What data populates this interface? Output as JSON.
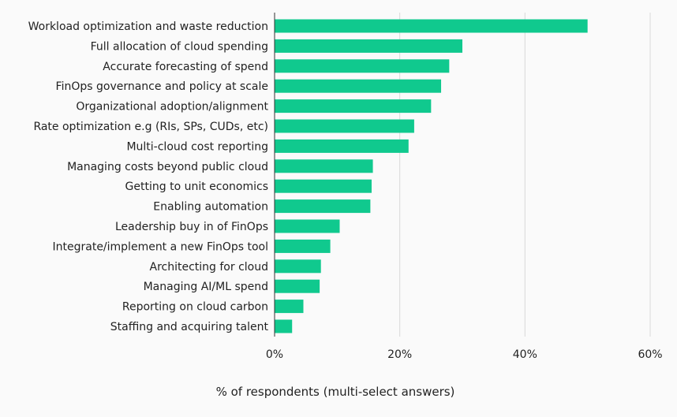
{
  "chart_data": {
    "type": "bar",
    "orientation": "horizontal",
    "categories": [
      "Workload optimization and waste reduction",
      "Full allocation of cloud spending",
      "Accurate forecasting of spend",
      "FinOps governance and policy at scale",
      "Organizational adoption/alignment",
      "Rate optimization e.g (RIs, SPs, CUDs, etc)",
      "Multi-cloud cost reporting",
      "Managing costs beyond public cloud",
      "Getting to unit economics",
      "Enabling automation",
      "Leadership buy in of FinOps",
      "Integrate/implement a new FinOps tool",
      "Architecting for cloud",
      "Managing AI/ML spend",
      "Reporting on cloud carbon",
      "Staffing and acquiring talent"
    ],
    "values": [
      50.0,
      30.0,
      27.9,
      26.6,
      25.0,
      22.3,
      21.4,
      15.7,
      15.5,
      15.3,
      10.4,
      8.9,
      7.4,
      7.2,
      4.6,
      2.8
    ],
    "xlabel": "% of respondents (multi-select answers)",
    "xlim": [
      0,
      60
    ],
    "xticks": [
      0,
      20,
      40,
      60
    ],
    "xtick_labels": [
      "0%",
      "20%",
      "40%",
      "60%"
    ],
    "grid": true,
    "legend": "none",
    "bar_color": "#10c98e",
    "axis_color": "#333333",
    "grid_color": "#d9d9d9",
    "text_color": "#222222"
  }
}
